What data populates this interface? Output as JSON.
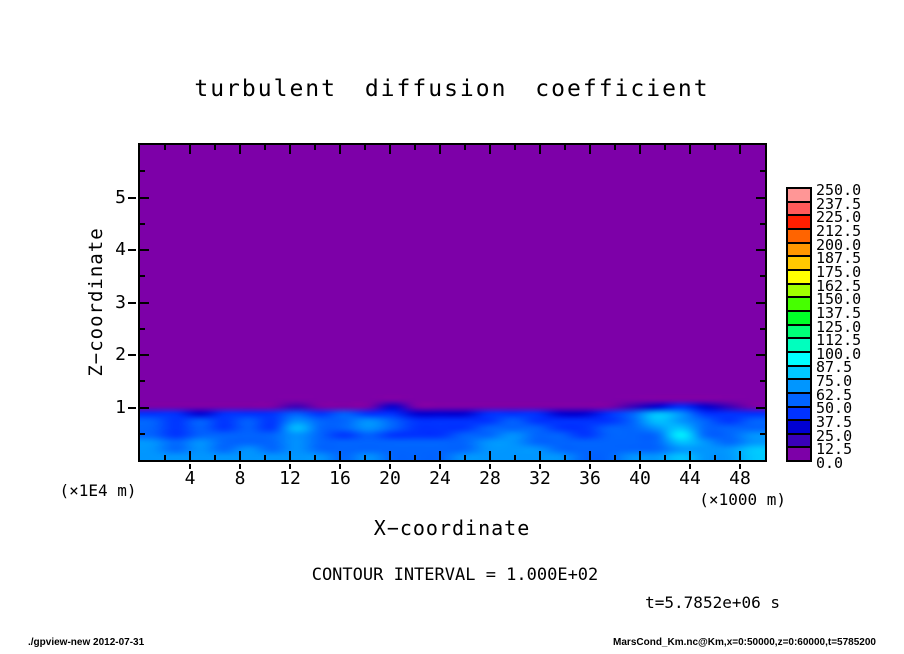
{
  "title": "turbulent diffusion coefficient",
  "annotations": {
    "contour_interval": "CONTOUR INTERVAL = 1.000E+02",
    "time": "t=5.7852e+06 s"
  },
  "footer": {
    "left": "./gpview-new  2012-07-31",
    "right": "MarsCond_Km.nc@Km,x=0:50000,z=0:60000,t=5785200"
  },
  "chart_data": {
    "type": "heatmap",
    "title": "turbulent diffusion coefficient",
    "xlabel": "X−coordinate",
    "ylabel": "Z−coordinate",
    "x_unit": "(×1000 m)",
    "y_unit": "(×1E4 m)",
    "xlim": [
      0,
      50
    ],
    "ylim": [
      0,
      6
    ],
    "x_major_ticks": [
      4,
      8,
      12,
      16,
      20,
      24,
      28,
      32,
      36,
      40,
      44,
      48
    ],
    "x_minor_step": 2,
    "y_major_ticks": [
      1,
      2,
      3,
      4,
      5
    ],
    "y_minor_step": 0.5,
    "grid": false,
    "background_color": "#7d00a8",
    "contour_interval": "1.000E+02",
    "time_s": "5.7852e+06",
    "colorbar": {
      "position": "right",
      "step": 12.5,
      "levels": [
        0.0,
        12.5,
        25.0,
        37.5,
        50.0,
        62.5,
        75.0,
        87.5,
        100.0,
        112.5,
        125.0,
        137.5,
        150.0,
        162.5,
        175.0,
        187.5,
        200.0,
        212.5,
        225.0,
        237.5,
        250.0
      ],
      "colors": [
        "#7d00a8",
        "#3a00b9",
        "#0000d2",
        "#0032ff",
        "#0064ff",
        "#0096ff",
        "#00c8ff",
        "#00ffff",
        "#00ffbe",
        "#00ff78",
        "#00ff28",
        "#46ff00",
        "#a0ff00",
        "#ffff00",
        "#ffc800",
        "#ff9600",
        "#ff6400",
        "#ff1e00",
        "#ff5a5a",
        "#ff9696"
      ]
    },
    "field": {
      "description": "approximate Km values; turbulent boundary layer below z≈1×1E4 m, uniform low values (purple) above",
      "x": [
        0,
        2,
        4,
        6,
        8,
        10,
        12,
        14,
        16,
        18,
        20,
        22,
        24,
        26,
        28,
        30,
        32,
        34,
        36,
        38,
        40,
        42,
        44,
        46,
        48,
        50
      ],
      "z": [
        1.35,
        1.2,
        1.05,
        0.9,
        0.75,
        0.6,
        0.45,
        0.3,
        0.15,
        0.0
      ],
      "values": [
        [
          5,
          5,
          5,
          5,
          5,
          5,
          5,
          5,
          5,
          5,
          5,
          5,
          5,
          5,
          5,
          5,
          5,
          5,
          5,
          5,
          5,
          5,
          5,
          5,
          5,
          5
        ],
        [
          5,
          5,
          5,
          5,
          5,
          5,
          6,
          5,
          5,
          5,
          10,
          5,
          5,
          5,
          5,
          5,
          5,
          5,
          5,
          5,
          5,
          6,
          12,
          10,
          5,
          5
        ],
        [
          10,
          10,
          10,
          10,
          10,
          8,
          22,
          10,
          10,
          8,
          32,
          10,
          8,
          8,
          8,
          8,
          8,
          6,
          8,
          10,
          20,
          35,
          48,
          30,
          14,
          12
        ],
        [
          38,
          42,
          36,
          44,
          38,
          40,
          55,
          42,
          50,
          44,
          38,
          32,
          33,
          36,
          40,
          42,
          38,
          34,
          36,
          42,
          58,
          78,
          65,
          48,
          42,
          40
        ],
        [
          52,
          40,
          55,
          42,
          54,
          44,
          72,
          50,
          62,
          72,
          55,
          40,
          40,
          43,
          46,
          50,
          46,
          40,
          43,
          48,
          62,
          82,
          72,
          52,
          46,
          56
        ],
        [
          58,
          44,
          60,
          45,
          57,
          47,
          80,
          56,
          50,
          66,
          50,
          42,
          43,
          46,
          52,
          56,
          50,
          45,
          45,
          50,
          56,
          72,
          86,
          56,
          50,
          62
        ],
        [
          62,
          48,
          62,
          50,
          60,
          52,
          72,
          58,
          48,
          56,
          48,
          45,
          46,
          50,
          62,
          66,
          58,
          50,
          48,
          50,
          52,
          62,
          90,
          62,
          56,
          66
        ],
        [
          64,
          54,
          64,
          55,
          62,
          55,
          66,
          60,
          52,
          55,
          52,
          50,
          52,
          56,
          66,
          70,
          62,
          55,
          52,
          52,
          55,
          58,
          80,
          66,
          62,
          70
        ],
        [
          66,
          62,
          66,
          62,
          64,
          60,
          63,
          62,
          58,
          60,
          58,
          56,
          58,
          60,
          68,
          72,
          64,
          60,
          58,
          58,
          60,
          62,
          74,
          70,
          68,
          76
        ],
        [
          70,
          68,
          70,
          68,
          68,
          66,
          66,
          66,
          62,
          64,
          62,
          60,
          62,
          64,
          70,
          74,
          68,
          64,
          62,
          62,
          64,
          66,
          76,
          72,
          72,
          80
        ]
      ]
    }
  }
}
